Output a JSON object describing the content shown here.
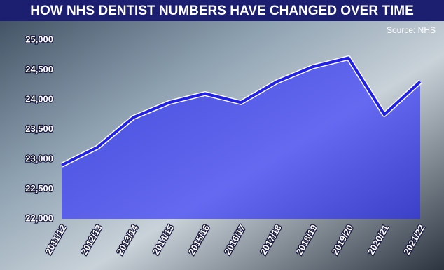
{
  "chart_data": {
    "type": "area",
    "title": "HOW NHS DENTIST NUMBERS HAVE CHANGED OVER TIME",
    "source": "Source: NHS",
    "categories": [
      "2011/12",
      "2012/13",
      "2013/14",
      "2014/15",
      "2015/16",
      "2016/17",
      "2017/18",
      "2018/19",
      "2019/20",
      "2020/21",
      "2021/22"
    ],
    "values": [
      22900,
      23200,
      23700,
      23950,
      24100,
      23950,
      24300,
      24550,
      24700,
      23750,
      24300
    ],
    "color": "#1f1fe8",
    "ylim": [
      22000,
      25000
    ],
    "yticks": [
      {
        "value": 22000,
        "label": "22,000"
      },
      {
        "value": 22500,
        "label": "22,500"
      },
      {
        "value": 23000,
        "label": "23,000"
      },
      {
        "value": 23500,
        "label": "23,500"
      },
      {
        "value": 24000,
        "label": "24,000"
      },
      {
        "value": 24500,
        "label": "24,500"
      },
      {
        "value": 25000,
        "label": "25,000"
      }
    ]
  }
}
